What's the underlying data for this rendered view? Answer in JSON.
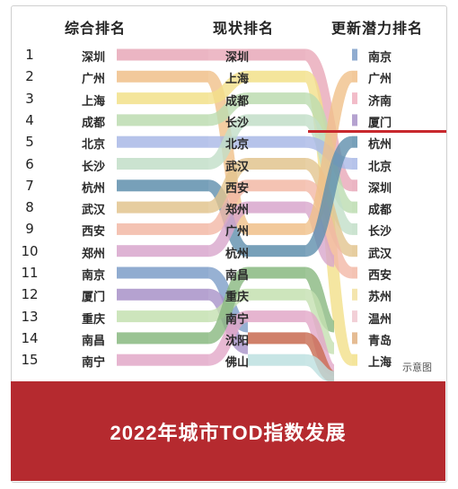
{
  "headers": {
    "overall": "综合排名",
    "current": "现状排名",
    "potential": "更新潜力排名"
  },
  "ranks": [
    "1",
    "2",
    "3",
    "4",
    "5",
    "6",
    "7",
    "8",
    "9",
    "10",
    "11",
    "12",
    "13",
    "14",
    "15"
  ],
  "overall_column": [
    "深圳",
    "广州",
    "上海",
    "成都",
    "北京",
    "长沙",
    "杭州",
    "武汉",
    "西安",
    "郑州",
    "南京",
    "厦门",
    "重庆",
    "南昌",
    "南宁"
  ],
  "current_column": [
    "深圳",
    "上海",
    "成都",
    "长沙",
    "北京",
    "武汉",
    "西安",
    "郑州",
    "广州",
    "杭州",
    "南昌",
    "重庆",
    "南宁",
    "沈阳",
    "佛山"
  ],
  "potential_column": [
    "南京",
    "广州",
    "济南",
    "厦门",
    "杭州",
    "北京",
    "深圳",
    "成都",
    "长沙",
    "武汉",
    "西安",
    "苏州",
    "温州",
    "青岛",
    "上海"
  ],
  "watermark": "示意图",
  "banner_title": "2022年城市TOD指数发展",
  "colors": {
    "banner": "#b52a2f",
    "red_rule": "#c8282d",
    "深圳": "#e8a8b8",
    "广州": "#f0c08a",
    "上海": "#f2e08a",
    "成都": "#bcdcb0",
    "北京": "#a9b8e6",
    "长沙": "#c2dec8",
    "杭州": "#5f8fad",
    "武汉": "#e2c48e",
    "西安": "#f2b8a6",
    "郑州": "#d8a6cc",
    "南京": "#7d9ec8",
    "厦门": "#a892c8",
    "重庆": "#c4e0b0",
    "南昌": "#88b880",
    "南宁": "#e2a8c8",
    "济南": "#f0b0c0",
    "沈阳": "#c86a50",
    "佛山": "#bde0e0",
    "苏州": "#f2e0a0",
    "温州": "#f0c8d0",
    "青岛": "#e0b080"
  }
}
